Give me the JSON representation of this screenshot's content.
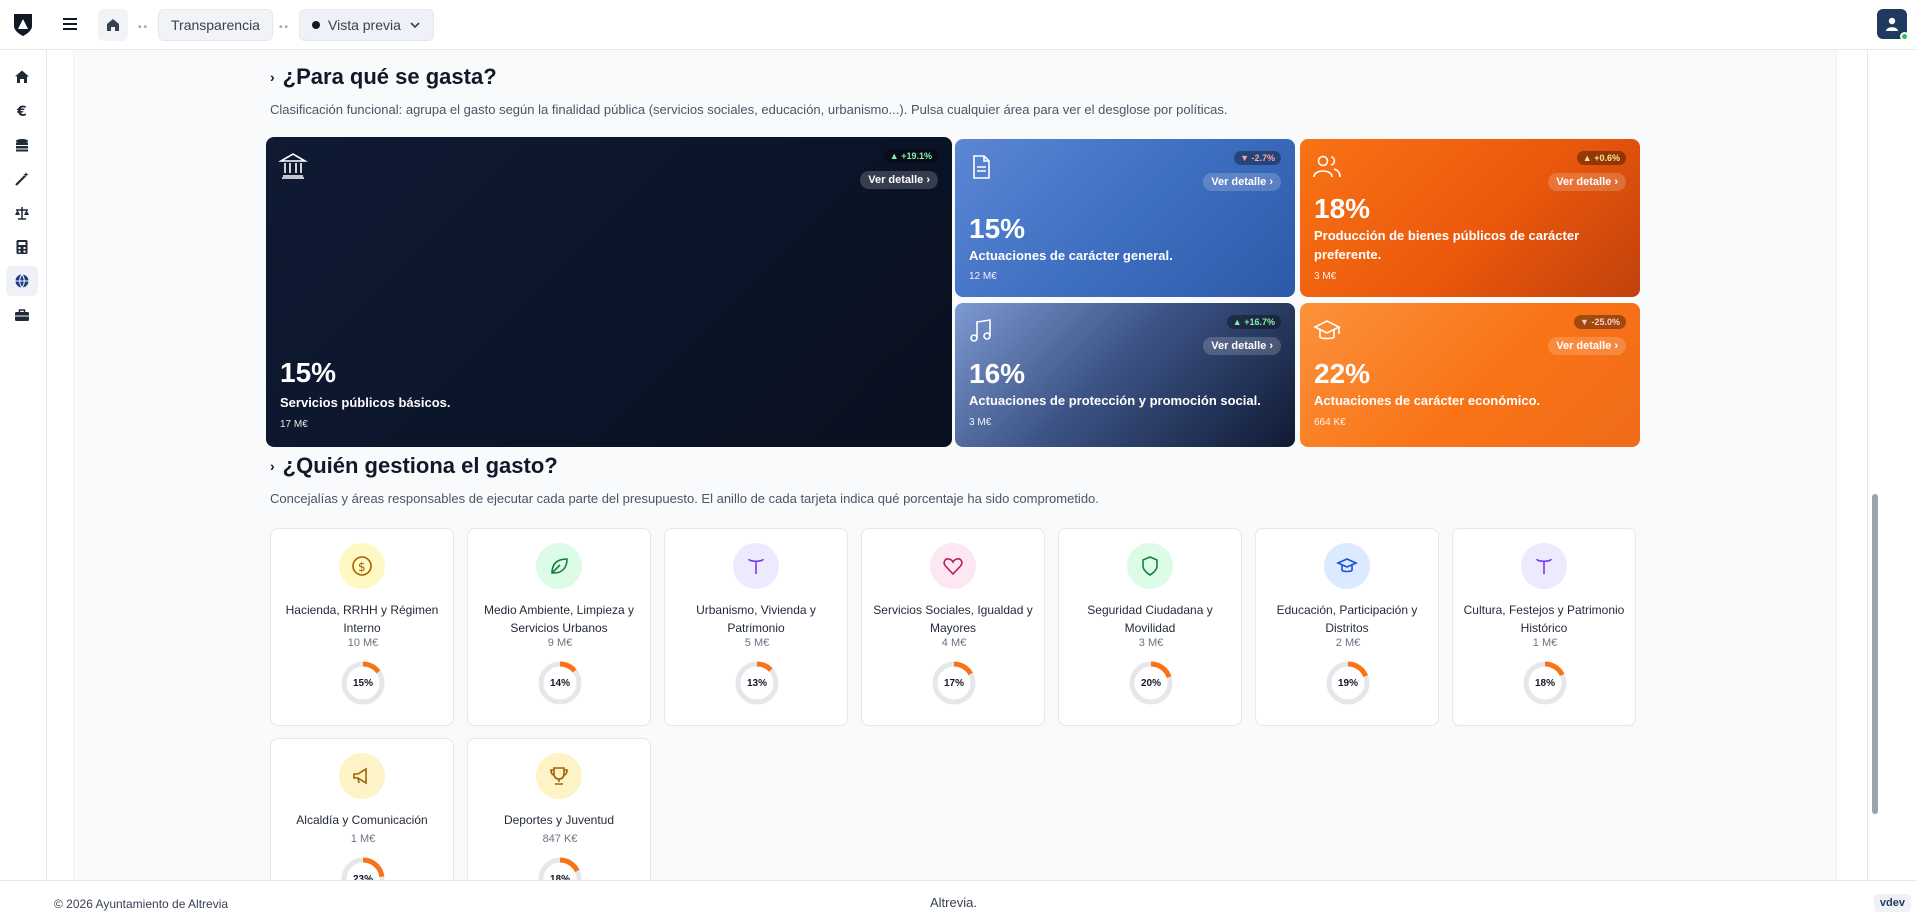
{
  "header": {
    "breadcrumb": [
      "Transparencia"
    ],
    "preview_label": "Vista previa"
  },
  "sidebar": {
    "items": [
      {
        "icon": "home-icon"
      },
      {
        "icon": "euro-icon"
      },
      {
        "icon": "coins-icon"
      },
      {
        "icon": "wand-icon"
      },
      {
        "icon": "scale-icon"
      },
      {
        "icon": "calculator-icon"
      },
      {
        "icon": "globe-icon",
        "active": true
      },
      {
        "icon": "briefcase-icon"
      }
    ]
  },
  "functional": {
    "title": "¿Para qué se gasta?",
    "subtitle": "Clasificación funcional: agrupa el gasto según la finalidad pública (servicios sociales, educación, urbanismo...). Pulsa cualquier área para ver el desglose por políticas.",
    "detail_label": "Ver detalle ›",
    "tiles": [
      {
        "pct": "15%",
        "label": "Servicios públicos básicos.",
        "amount": "17 M€",
        "change": "+19.1%",
        "dir": "up",
        "icon": "bank-icon"
      },
      {
        "pct": "15%",
        "label": "Actuaciones de carácter general.",
        "amount": "12 M€",
        "change": "-2.7%",
        "dir": "down",
        "icon": "document-icon"
      },
      {
        "pct": "18%",
        "label": "Producción de bienes públicos de carácter preferente.",
        "amount": "3 M€",
        "change": "+0.6%",
        "dir": "up",
        "icon": "users-icon"
      },
      {
        "pct": "16%",
        "label": "Actuaciones de protección y promoción social.",
        "amount": "3 M€",
        "change": "+16.7%",
        "dir": "up",
        "icon": "music-icon"
      },
      {
        "pct": "22%",
        "label": "Actuaciones de carácter económico.",
        "amount": "664 K€",
        "change": "-25.0%",
        "dir": "down",
        "icon": "graduation-cap-icon"
      }
    ]
  },
  "organic": {
    "title": "¿Quién gestiona el gasto?",
    "subtitle": "Concejalías y áreas responsables de ejecutar cada parte del presupuesto. El anillo de cada tarjeta indica qué porcentaje ha sido comprometido.",
    "cards": [
      {
        "name": "Hacienda, RRHH y Régimen Interno",
        "amount": "10 M€",
        "pct": "15%",
        "value": 15,
        "icon": "dollar-circle-icon",
        "bg": "#fef9c3",
        "fg": "#a16207"
      },
      {
        "name": "Medio Ambiente, Limpieza y Servicios Urbanos",
        "amount": "9 M€",
        "pct": "14%",
        "value": 14,
        "icon": "leaf-icon",
        "bg": "#dcfce7",
        "fg": "#15803d"
      },
      {
        "name": "Urbanismo, Vivienda y Patrimonio",
        "amount": "5 M€",
        "pct": "13%",
        "value": 13,
        "icon": "type-icon",
        "bg": "#ede9fe",
        "fg": "#7c3aed"
      },
      {
        "name": "Servicios Sociales, Igualdad y Mayores",
        "amount": "4 M€",
        "pct": "17%",
        "value": 17,
        "icon": "heart-icon",
        "bg": "#fce7f3",
        "fg": "#be185d"
      },
      {
        "name": "Seguridad Ciudadana y Movilidad",
        "amount": "3 M€",
        "pct": "20%",
        "value": 20,
        "icon": "shield-icon",
        "bg": "#dcfce7",
        "fg": "#15803d"
      },
      {
        "name": "Educación, Participación y Distritos",
        "amount": "2 M€",
        "pct": "19%",
        "value": 19,
        "icon": "graduation-cap-icon",
        "bg": "#dbeafe",
        "fg": "#1d4ed8"
      },
      {
        "name": "Cultura, Festejos y Patrimonio Histórico",
        "amount": "1 M€",
        "pct": "18%",
        "value": 18,
        "icon": "type-icon",
        "bg": "#ede9fe",
        "fg": "#7c3aed"
      },
      {
        "name": "Alcaldía y Comunicación",
        "amount": "1 M€",
        "pct": "23%",
        "value": 23,
        "icon": "megaphone-icon",
        "bg": "#fef3c7",
        "fg": "#a16207"
      },
      {
        "name": "Deportes y Juventud",
        "amount": "847 K€",
        "pct": "18%",
        "value": 18,
        "icon": "trophy-icon",
        "bg": "#fef3c7",
        "fg": "#a16207"
      }
    ]
  },
  "footer": {
    "copyright": "© 2026 Ayuntamiento de Altrevia",
    "brand": "Altrevia.",
    "version": "vdev"
  },
  "colors": {
    "accent": "#f97316",
    "ring_track": "#e5e7eb"
  }
}
